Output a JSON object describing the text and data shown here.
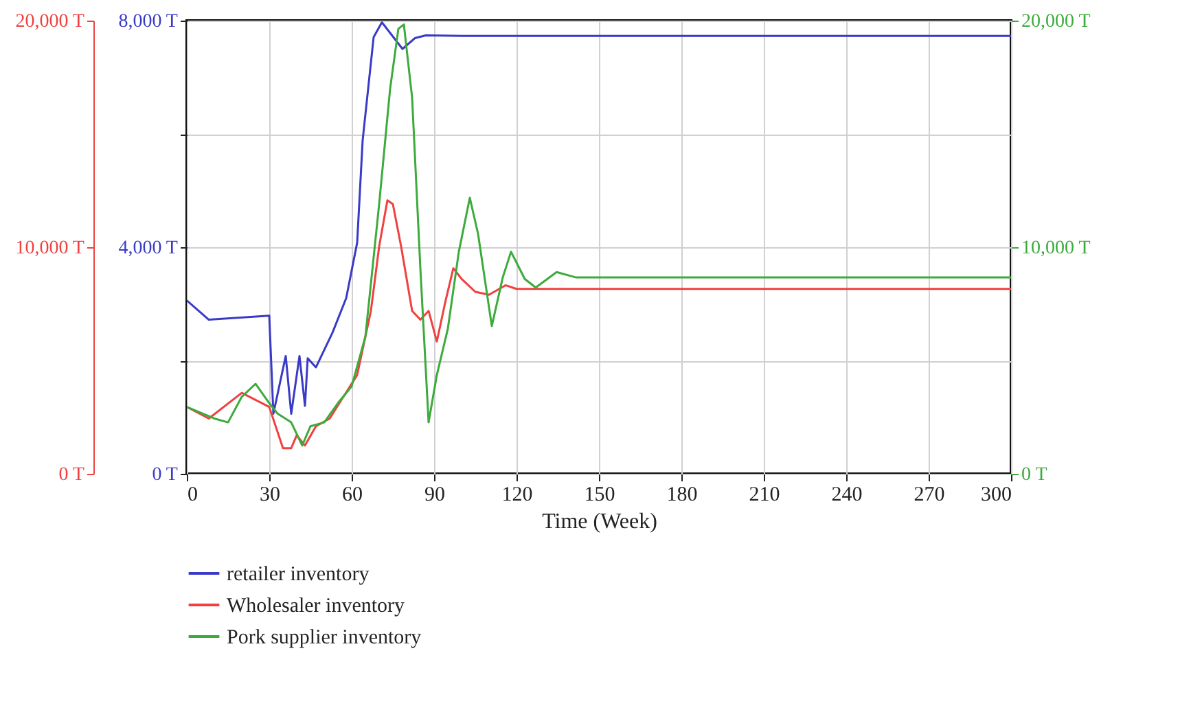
{
  "chart_data": {
    "type": "line",
    "xlabel": "Time (Week)",
    "xlim": [
      0,
      300
    ],
    "xticks": [
      0,
      30,
      60,
      90,
      120,
      150,
      180,
      210,
      240,
      270,
      300
    ],
    "ylim": [
      0,
      8000
    ],
    "yticks": [
      {
        "value": 0,
        "label": "0 T"
      },
      {
        "value": 2000,
        "label": null
      },
      {
        "value": 4000,
        "label": "4,000 T"
      },
      {
        "value": 6000,
        "label": null
      },
      {
        "value": 8000,
        "label": "8,000 T"
      }
    ],
    "y2lim": [
      0,
      20000
    ],
    "y2ticks": [
      {
        "value": 0,
        "label": "0 T"
      },
      {
        "value": 10000,
        "label": "10,000 T"
      },
      {
        "value": 20000,
        "label": "20,000 T"
      }
    ],
    "y3lim": [
      0,
      20000
    ],
    "y3ticks": [
      {
        "value": 0,
        "label": "0 T"
      },
      {
        "value": 10000,
        "label": "10,000 T"
      },
      {
        "value": 20000,
        "label": "20,000 T"
      }
    ],
    "grid": true,
    "legend": "bottom",
    "series": [
      {
        "name": "retailer inventory",
        "color": "#3a3ac8",
        "x": [
          0,
          8,
          30,
          31.5,
          36,
          38,
          41,
          43,
          44,
          47,
          53,
          58,
          62,
          64,
          68,
          71,
          78.5,
          83,
          87,
          100,
          300
        ],
        "values": [
          3060,
          2720,
          2790,
          1060,
          2080,
          1060,
          2080,
          1200,
          2040,
          1880,
          2490,
          3100,
          4080,
          5890,
          7710,
          7970,
          7500,
          7690,
          7740,
          7730,
          7730
        ]
      },
      {
        "name": "Wholesaler inventory",
        "color": "#f04040",
        "axis": "y2",
        "x": [
          0,
          8,
          20,
          30,
          35,
          38,
          40,
          43,
          47,
          52,
          57,
          62,
          67,
          70,
          73,
          75,
          78,
          82,
          85,
          88,
          91,
          94,
          97,
          100,
          105,
          110,
          116,
          120,
          300
        ],
        "values": [
          2950,
          2440,
          3570,
          2950,
          1130,
          1130,
          1700,
          1250,
          2100,
          2440,
          3400,
          4360,
          7190,
          10030,
          12070,
          11900,
          10030,
          7190,
          6800,
          7190,
          5840,
          7540,
          9070,
          8600,
          8030,
          7900,
          8320,
          8160,
          8160
        ]
      },
      {
        "name": "Pork supplier inventory",
        "color": "#3cab3c",
        "axis": "y3",
        "x": [
          0,
          10,
          15,
          20,
          25,
          30,
          33,
          38,
          42,
          45,
          50,
          55,
          60,
          65,
          70,
          74,
          77,
          79,
          82,
          85,
          88,
          91,
          95,
          99,
          103,
          106,
          111,
          115,
          118,
          123,
          127,
          134.6,
          141.5,
          300
        ],
        "values": [
          2950,
          2440,
          2270,
          3400,
          3970,
          3120,
          2660,
          2270,
          1250,
          2100,
          2270,
          3120,
          3860,
          6060,
          11900,
          17000,
          19640,
          19830,
          16600,
          9070,
          2270,
          4360,
          6400,
          9800,
          12180,
          10590,
          6520,
          8670,
          9800,
          8600,
          8220,
          8900,
          8670,
          8670
        ]
      }
    ]
  }
}
